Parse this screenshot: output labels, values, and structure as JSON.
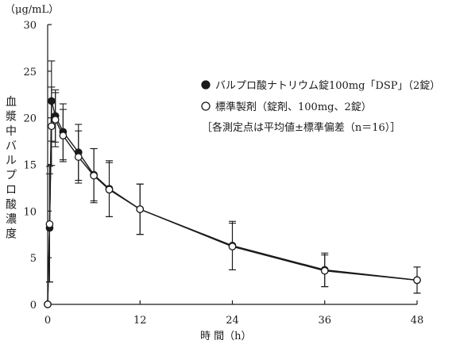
{
  "chart_data": {
    "type": "line",
    "unit_label": "（μg/mL）",
    "ylabel": "血漿中バルプロ酸濃度",
    "xlabel": "時 間（h）",
    "xlim": [
      0,
      48
    ],
    "ylim": [
      0,
      30
    ],
    "x_ticks": [
      0,
      12,
      24,
      36,
      48
    ],
    "y_ticks": [
      0,
      5,
      10,
      15,
      20,
      25,
      30
    ],
    "grid": false,
    "legend_position": "right",
    "legend_note": "［各測定点は平均値±標準偏差（n＝16）］",
    "series": [
      {
        "name": "バルプロ酸ナトリウム錠100mg「DSP」（2錠）",
        "marker": "filled-circle",
        "color": "#1a1a1a",
        "points": [
          {
            "x": 0,
            "y": 0,
            "sd": 0
          },
          {
            "x": 0.25,
            "y": 8.2,
            "sd": 5.8
          },
          {
            "x": 0.5,
            "y": 21.8,
            "sd": 4.3
          },
          {
            "x": 1,
            "y": 20.2,
            "sd": 2.8
          },
          {
            "x": 2,
            "y": 18.5,
            "sd": 3.0
          },
          {
            "x": 4,
            "y": 16.3,
            "sd": 3.0
          },
          {
            "x": 6,
            "y": 13.9,
            "sd": 2.8
          },
          {
            "x": 8,
            "y": 12.4,
            "sd": 3.0
          },
          {
            "x": 12,
            "y": 10.2,
            "sd": 2.7
          },
          {
            "x": 24,
            "y": 6.3,
            "sd": 2.6
          },
          {
            "x": 36,
            "y": 3.7,
            "sd": 1.8
          },
          {
            "x": 48,
            "y": 2.6,
            "sd": 1.4
          }
        ]
      },
      {
        "name": "標準製剤（錠剤、100mg、2錠）",
        "marker": "open-circle",
        "color": "#1a1a1a",
        "points": [
          {
            "x": 0,
            "y": 0,
            "sd": 0
          },
          {
            "x": 0.25,
            "y": 8.6,
            "sd": 6.2
          },
          {
            "x": 0.5,
            "y": 19.1,
            "sd": 4.2
          },
          {
            "x": 1,
            "y": 19.8,
            "sd": 2.9
          },
          {
            "x": 2,
            "y": 18.1,
            "sd": 2.8
          },
          {
            "x": 4,
            "y": 15.8,
            "sd": 2.8
          },
          {
            "x": 6,
            "y": 13.8,
            "sd": 2.9
          },
          {
            "x": 8,
            "y": 12.3,
            "sd": 2.9
          },
          {
            "x": 12,
            "y": 10.2,
            "sd": 2.7
          },
          {
            "x": 24,
            "y": 6.2,
            "sd": 2.5
          },
          {
            "x": 36,
            "y": 3.6,
            "sd": 1.7
          },
          {
            "x": 48,
            "y": 2.6,
            "sd": 1.4
          }
        ]
      }
    ]
  }
}
